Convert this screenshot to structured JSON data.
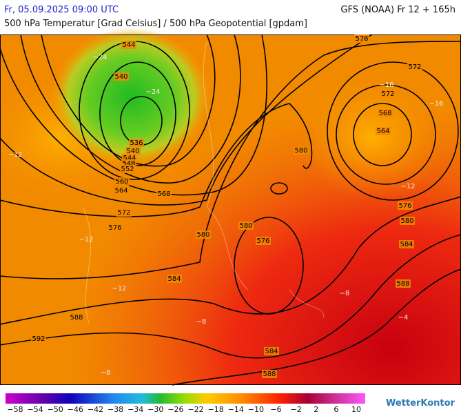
{
  "header": {
    "date": "Fr, 05.09.2025 09:00 UTC",
    "model": "GFS (NOAA) Fr 12 + 165h",
    "subtitle": "500 hPa Temperatur [Grad Celsius] / 500 hPa Geopotential [gpdam]"
  },
  "contour_labels": [
    "544",
    "540",
    "536",
    "540",
    "544",
    "548",
    "552",
    "560",
    "564",
    "568",
    "572",
    "576",
    "580",
    "584",
    "588",
    "592",
    "576",
    "572",
    "572",
    "568",
    "564",
    "580",
    "580",
    "576",
    "576",
    "580",
    "584",
    "588",
    "584",
    "588"
  ],
  "temperature_labels": [
    "−24",
    "−24",
    "−12",
    "−12",
    "−12",
    "−16",
    "−16",
    "−12",
    "−8",
    "−8",
    "−8",
    "−4"
  ],
  "colorbar": {
    "labels": [
      "−58",
      "−54",
      "−50",
      "−46",
      "−42",
      "−38",
      "−34",
      "−30",
      "−26",
      "−22",
      "−18",
      "−14",
      "−10",
      "−6",
      "−2",
      "2",
      "6",
      "10"
    ]
  },
  "logo": "WetterKontor"
}
